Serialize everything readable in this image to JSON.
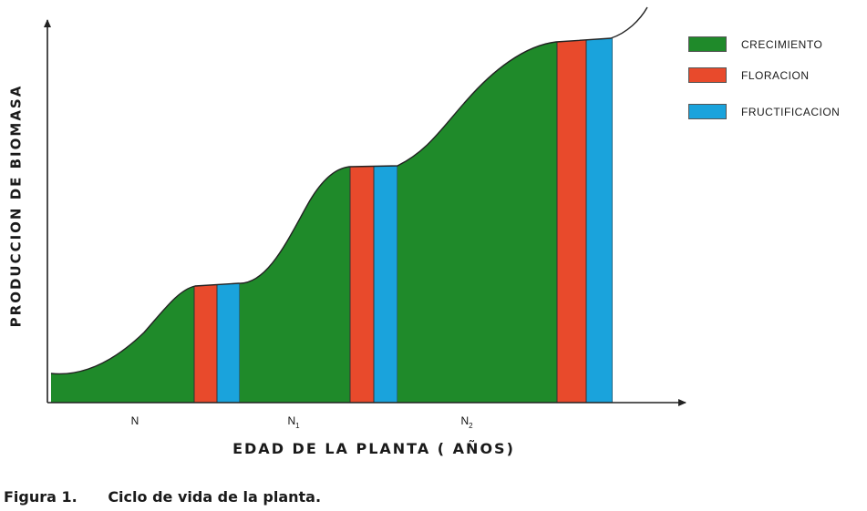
{
  "chart_data": {
    "type": "area",
    "ylabel": "PRODUCCION DE BIOMASA",
    "xlabel": "EDAD DE LA PLANTA ( AÑOS)",
    "x_ticks": [
      {
        "base": "N",
        "sub": ""
      },
      {
        "base": "N",
        "sub": "1"
      },
      {
        "base": "N",
        "sub": "2"
      }
    ],
    "legend": [
      {
        "name": "CRECIMIENTO",
        "color": "#1f8a2a"
      },
      {
        "name": "FLORACION",
        "color": "#e84a2c"
      },
      {
        "name": "FRUCTIFICACION",
        "color": "#1aa3dc"
      }
    ],
    "phases": [
      {
        "cycle": "N",
        "sequence": [
          "CRECIMIENTO",
          "FLORACION",
          "FRUCTIFICACION"
        ]
      },
      {
        "cycle": "N1",
        "sequence": [
          "CRECIMIENTO",
          "FLORACION",
          "FRUCTIFICACION"
        ]
      },
      {
        "cycle": "N2",
        "sequence": [
          "CRECIMIENTO",
          "FLORACION",
          "FRUCTIFICACION"
        ]
      }
    ],
    "grid": false,
    "legend_position": "top-right"
  },
  "caption": {
    "number": "Figura 1.",
    "text": "Ciclo de vida de la planta."
  }
}
